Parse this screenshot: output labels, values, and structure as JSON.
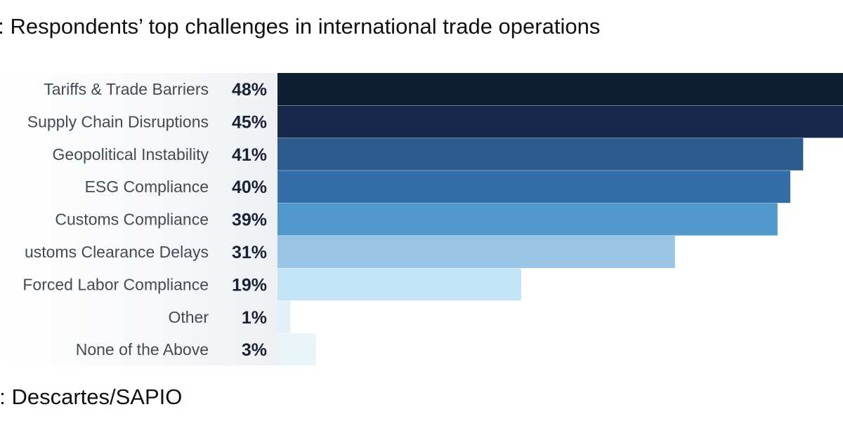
{
  "title": "1: Respondents’ top challenges in international trade operations",
  "source": "e: Descartes/SAPIO",
  "chart_data": {
    "type": "bar",
    "orientation": "horizontal",
    "title": "1: Respondents’ top challenges in international trade operations",
    "categories": [
      "Tariffs & Trade Barriers",
      "Supply Chain Disruptions",
      "Geopolitical Instability",
      "ESG Compliance",
      "Customs Compliance",
      "ustoms Clearance Delays",
      "Forced Labor Compliance",
      "Other",
      "None of the Above"
    ],
    "values": [
      48,
      45,
      41,
      40,
      39,
      31,
      19,
      1,
      3
    ],
    "value_labels": [
      "48%",
      "45%",
      "41%",
      "40%",
      "39%",
      "31%",
      "19%",
      "1%",
      "3%"
    ],
    "colors": [
      "#0d1d31",
      "#16294b",
      "#2c5b8d",
      "#336ea8",
      "#5199cc",
      "#9ac5e4",
      "#c3e3f6",
      "#e3f0f9",
      "#eaf4f8"
    ],
    "value_unit": "%",
    "grid": false,
    "legend": "none"
  }
}
